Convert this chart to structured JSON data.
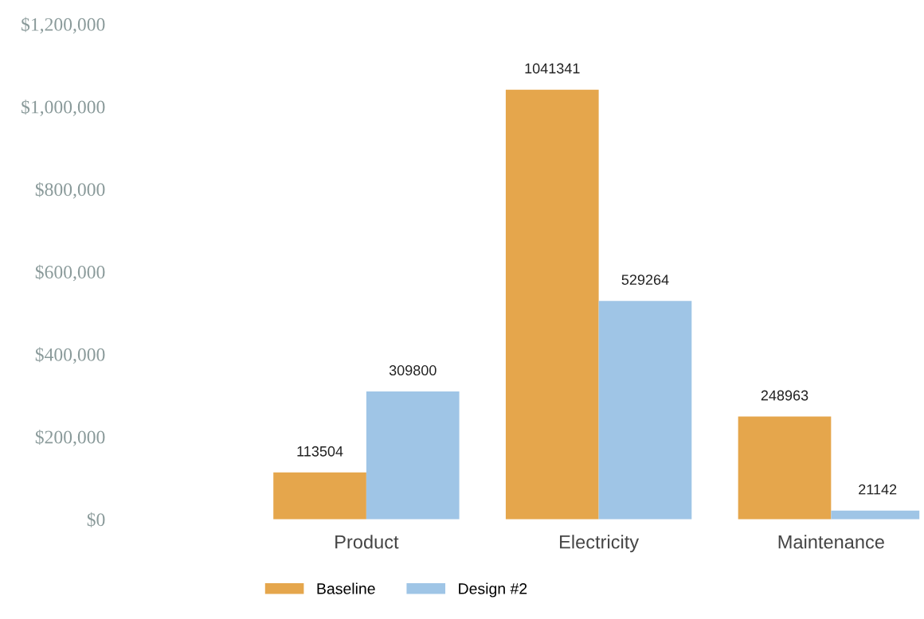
{
  "chart_data": {
    "type": "bar",
    "categories": [
      "Product",
      "Electricity",
      "Maintenance"
    ],
    "series": [
      {
        "name": "Baseline",
        "color": "#e5a64c",
        "values": [
          113504,
          1041341,
          248963
        ]
      },
      {
        "name": "Design #2",
        "color": "#9fc5e6",
        "values": [
          309800,
          529264,
          21142
        ]
      }
    ],
    "ylim": [
      0,
      1200000
    ],
    "yticks": [
      {
        "value": 0,
        "label": "$0"
      },
      {
        "value": 200000,
        "label": "$200,000"
      },
      {
        "value": 400000,
        "label": "$400,000"
      },
      {
        "value": 600000,
        "label": "$600,000"
      },
      {
        "value": 800000,
        "label": "$800,000"
      },
      {
        "value": 1000000,
        "label": "$1,000,000"
      },
      {
        "value": 1200000,
        "label": "$1,200,000"
      }
    ],
    "data_labels": true,
    "legend": "bottom",
    "grid": false
  }
}
